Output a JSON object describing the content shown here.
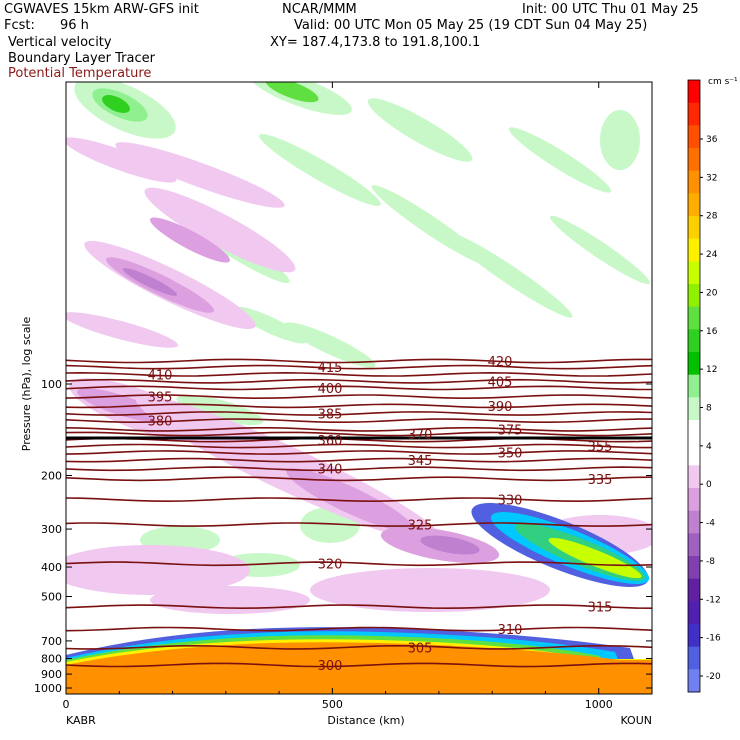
{
  "header": {
    "model": "CGWAVES 15km ARW-GFS init",
    "org": "NCAR/MMM",
    "init": "Init: 00 UTC Thu 01 May 25",
    "fcst_label": "Fcst:",
    "fcst_value": "96 h",
    "valid": "Valid: 00 UTC Mon 05 May 25 (19 CDT Sun 04 May 25)",
    "field1": "Vertical velocity",
    "xy": "XY= 187.4,173.8 to 191.8,100.1",
    "field2": "Boundary Layer Tracer",
    "field3": "Potential Temperature"
  },
  "chart_data": {
    "type": "heatmap",
    "xlabel": "Distance (km)",
    "ylabel": "Pressure (hPa), log scale",
    "xlim": [
      0,
      1100
    ],
    "x_ticks": [
      "0",
      "500",
      "1000"
    ],
    "x_endpoints": [
      "KABR",
      "KOUN"
    ],
    "y_ticks": [
      100,
      200,
      300,
      400,
      500,
      700,
      800,
      900,
      1000
    ],
    "colorbar": {
      "unit": "cm s⁻¹",
      "labels": [
        "36",
        "32",
        "28",
        "24",
        "20",
        "16",
        "12",
        "8",
        "4",
        "0",
        "-4",
        "-8",
        "-12",
        "-16",
        "-20"
      ],
      "colors": [
        "#ff0000",
        "#ff2800",
        "#ff5000",
        "#ff7000",
        "#ff9000",
        "#ffae00",
        "#ffd000",
        "#fff000",
        "#c8ff00",
        "#90f000",
        "#60e040",
        "#30d020",
        "#00c000",
        "#90f090",
        "#c8f8c8",
        "#ffffff",
        "#ffffff",
        "#f0c8f0",
        "#dca0e0",
        "#c080d0",
        "#a060c0",
        "#8040b0",
        "#6020a0",
        "#5020b0",
        "#4030c8",
        "#5060e0",
        "#7080f0"
      ]
    },
    "theta_contours": [
      {
        "value": 300,
        "p": 840
      },
      {
        "value": 305,
        "p": 735
      },
      {
        "value": 310,
        "p": 640
      },
      {
        "value": 315,
        "p": 540
      },
      {
        "value": 320,
        "p": 390
      },
      {
        "value": 325,
        "p": 290
      },
      {
        "value": 330,
        "p": 240
      },
      {
        "value": 335,
        "p": 205
      },
      {
        "value": 340,
        "p": 190
      },
      {
        "value": 345,
        "p": 178
      },
      {
        "value": 350,
        "p": 168
      },
      {
        "value": 355,
        "p": 160
      },
      {
        "value": 360,
        "p": 153
      },
      {
        "value": 370,
        "p": 146
      },
      {
        "value": 375,
        "p": 141
      },
      {
        "value": 380,
        "p": 132
      },
      {
        "value": 385,
        "p": 125
      },
      {
        "value": 390,
        "p": 118
      },
      {
        "value": 395,
        "p": 110
      },
      {
        "value": 400,
        "p": 103
      },
      {
        "value": 405,
        "p": 98
      },
      {
        "value": 410,
        "p": 93
      },
      {
        "value": 415,
        "p": 88
      },
      {
        "value": 420,
        "p": 84
      }
    ]
  }
}
